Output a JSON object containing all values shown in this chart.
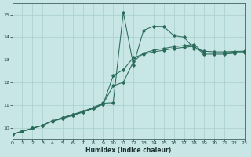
{
  "xlabel": "Humidex (Indice chaleur)",
  "bg_color": "#c8e6e6",
  "grid_color": "#a8cece",
  "line_color": "#2a6b5a",
  "xlim": [
    0,
    23
  ],
  "ylim": [
    9.5,
    15.5
  ],
  "yticks": [
    10,
    11,
    12,
    13,
    14,
    15
  ],
  "xtick_labels": [
    "0",
    "1",
    "2",
    "3",
    "4",
    "5",
    "6",
    "7",
    "8",
    "9",
    "10",
    "11",
    "12",
    "13",
    "14",
    "15",
    "16",
    "17",
    "18",
    "19",
    "20",
    "21",
    "22",
    "23"
  ],
  "xticks": [
    0,
    1,
    2,
    3,
    4,
    5,
    6,
    7,
    8,
    9,
    10,
    11,
    12,
    13,
    14,
    15,
    16,
    17,
    18,
    19,
    20,
    21,
    22,
    23
  ],
  "s1x": [
    0,
    1,
    2,
    3,
    4,
    5,
    6,
    7,
    8,
    9,
    10,
    11,
    12,
    13,
    14,
    15,
    16,
    17,
    18,
    19,
    20,
    21,
    22,
    23
  ],
  "s1y": [
    9.7,
    9.85,
    9.97,
    10.1,
    10.3,
    10.45,
    10.58,
    10.72,
    10.88,
    11.08,
    11.1,
    15.1,
    12.77,
    14.3,
    14.48,
    14.47,
    14.07,
    14.0,
    13.5,
    13.38,
    13.35,
    13.35,
    13.37,
    13.38
  ],
  "s2x": [
    0,
    1,
    2,
    3,
    4,
    5,
    6,
    7,
    8,
    9,
    10,
    11,
    12,
    13,
    14,
    15,
    16,
    17,
    18,
    19,
    20,
    21,
    22,
    23
  ],
  "s2y": [
    9.7,
    9.83,
    9.97,
    10.1,
    10.3,
    10.42,
    10.56,
    10.7,
    10.86,
    11.05,
    11.85,
    12.0,
    12.92,
    13.3,
    13.42,
    13.5,
    13.58,
    13.63,
    13.68,
    13.3,
    13.3,
    13.3,
    13.34,
    13.36
  ],
  "s3x": [
    0,
    1,
    2,
    3,
    4,
    5,
    6,
    7,
    8,
    9,
    10,
    11,
    12,
    13,
    14,
    15,
    16,
    17,
    18,
    19,
    20,
    21,
    22,
    23
  ],
  "s3y": [
    9.7,
    9.83,
    9.97,
    10.1,
    10.28,
    10.4,
    10.54,
    10.68,
    10.84,
    11.03,
    12.3,
    12.56,
    13.1,
    13.25,
    13.35,
    13.42,
    13.5,
    13.55,
    13.6,
    13.25,
    13.25,
    13.25,
    13.29,
    13.32
  ]
}
